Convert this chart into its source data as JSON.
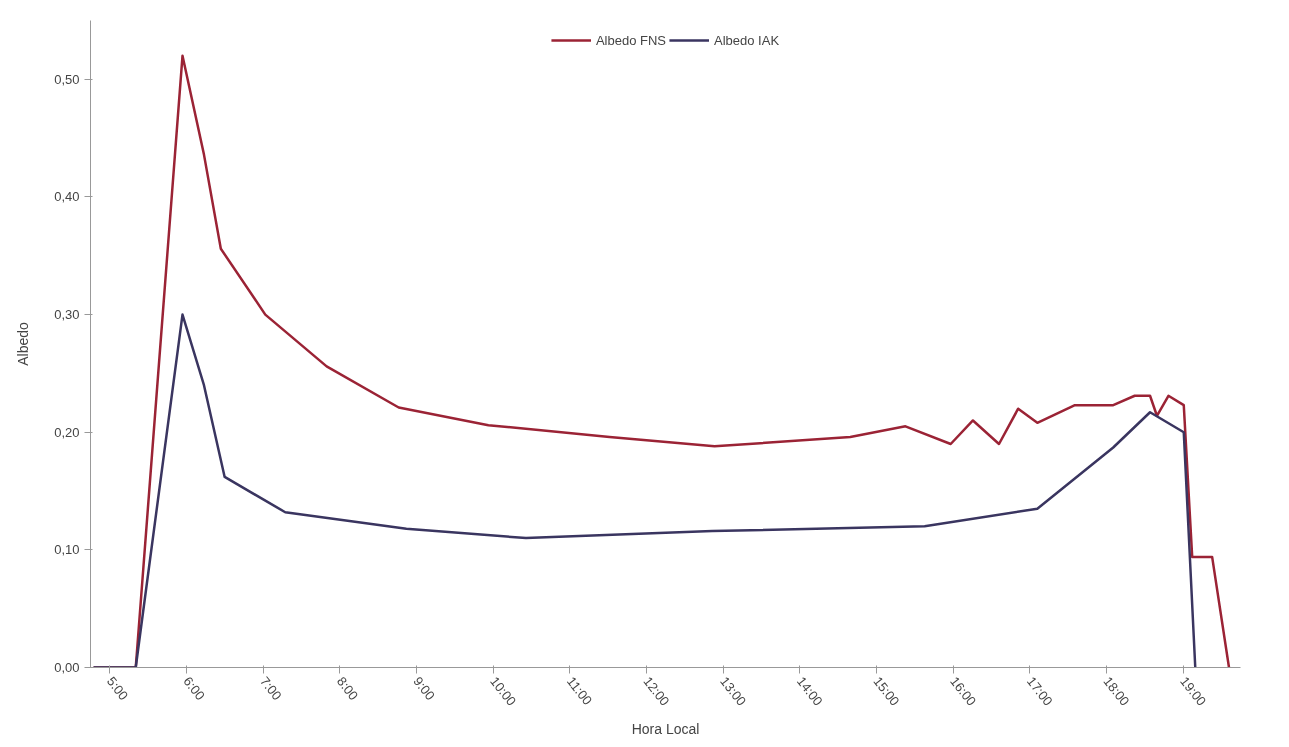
{
  "chart_data": {
    "type": "line",
    "xlabel": "Hora Local",
    "ylabel": "Albedo",
    "legend": "top",
    "grid": false,
    "marker": "none",
    "line_style": "solid",
    "xlim": [
      4.75,
      19.75
    ],
    "ylim": [
      0,
      0.55
    ],
    "xticks": [
      {
        "value": 5,
        "label": "5:00"
      },
      {
        "value": 6,
        "label": "6:00"
      },
      {
        "value": 7,
        "label": "7:00"
      },
      {
        "value": 8,
        "label": "8:00"
      },
      {
        "value": 9,
        "label": "9:00"
      },
      {
        "value": 10,
        "label": "10:00"
      },
      {
        "value": 11,
        "label": "11:00"
      },
      {
        "value": 12,
        "label": "12:00"
      },
      {
        "value": 13,
        "label": "13:00"
      },
      {
        "value": 14,
        "label": "14:00"
      },
      {
        "value": 15,
        "label": "15:00"
      },
      {
        "value": 16,
        "label": "16:00"
      },
      {
        "value": 17,
        "label": "17:00"
      },
      {
        "value": 18,
        "label": "18:00"
      },
      {
        "value": 19,
        "label": "19:00"
      }
    ],
    "yticks": [
      {
        "value": 0,
        "label": "0,00"
      },
      {
        "value": 0.1,
        "label": "0,10"
      },
      {
        "value": 0.2,
        "label": "0,20"
      },
      {
        "value": 0.3,
        "label": "0,30"
      },
      {
        "value": 0.4,
        "label": "0,40"
      },
      {
        "value": 0.5,
        "label": "0,50"
      }
    ],
    "series": [
      {
        "name": "Albedo FNS",
        "color": "#9b2335",
        "x": [
          4.79,
          5.34,
          5.95,
          6.23,
          6.45,
          7.03,
          7.83,
          8.77,
          9.94,
          11.52,
          12.89,
          14.66,
          15.38,
          15.97,
          16.26,
          16.6,
          16.85,
          17.1,
          17.59,
          18.09,
          18.37,
          18.57,
          18.66,
          18.81,
          19.01,
          19.12,
          19.38,
          19.6
        ],
        "values": [
          0,
          0,
          0.52,
          0.436,
          0.356,
          0.3,
          0.256,
          0.221,
          0.206,
          0.196,
          0.188,
          0.196,
          0.205,
          0.19,
          0.21,
          0.19,
          0.22,
          0.208,
          0.223,
          0.223,
          0.231,
          0.231,
          0.214,
          0.231,
          0.223,
          0.094,
          0.094,
          0
        ]
      },
      {
        "name": "Albedo IAK",
        "color": "#3a3560",
        "x": [
          4.79,
          5.34,
          5.95,
          6.23,
          6.5,
          7.29,
          8.87,
          10.43,
          12.86,
          15.63,
          17.1,
          18.09,
          18.57,
          19.01,
          19.16
        ],
        "values": [
          0,
          0,
          0.3,
          0.24,
          0.162,
          0.132,
          0.118,
          0.11,
          0.116,
          0.12,
          0.135,
          0.187,
          0.217,
          0.2,
          0
        ]
      }
    ]
  }
}
